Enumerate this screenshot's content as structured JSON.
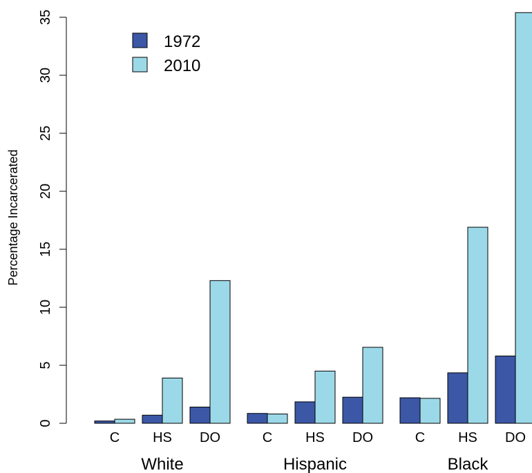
{
  "chart_data": {
    "type": "bar",
    "ylabel": "Percentage Incarcerated",
    "ylim": [
      0,
      35
    ],
    "yticks": [
      0,
      5,
      10,
      15,
      20,
      25,
      30,
      35
    ],
    "grid": false,
    "legend_position": "top-left",
    "groups": [
      {
        "name": "White",
        "categories": [
          "C",
          "HS",
          "DO"
        ],
        "series": [
          {
            "name": "1972",
            "values": [
              0.2,
              0.7,
              1.4
            ]
          },
          {
            "name": "2010",
            "values": [
              0.35,
              3.9,
              12.3
            ]
          }
        ]
      },
      {
        "name": "Hispanic",
        "categories": [
          "C",
          "HS",
          "DO"
        ],
        "series": [
          {
            "name": "1972",
            "values": [
              0.85,
              1.85,
              2.25
            ]
          },
          {
            "name": "2010",
            "values": [
              0.8,
              4.5,
              6.55
            ]
          }
        ]
      },
      {
        "name": "Black",
        "categories": [
          "C",
          "HS",
          "DO"
        ],
        "series": [
          {
            "name": "1972",
            "values": [
              2.2,
              4.35,
              5.8
            ]
          },
          {
            "name": "2010",
            "values": [
              2.15,
              16.9,
              35.4
            ]
          }
        ]
      }
    ],
    "legend": [
      {
        "name": "1972",
        "color": "#3b57a6"
      },
      {
        "name": "2010",
        "color": "#9cd9e8"
      }
    ]
  }
}
